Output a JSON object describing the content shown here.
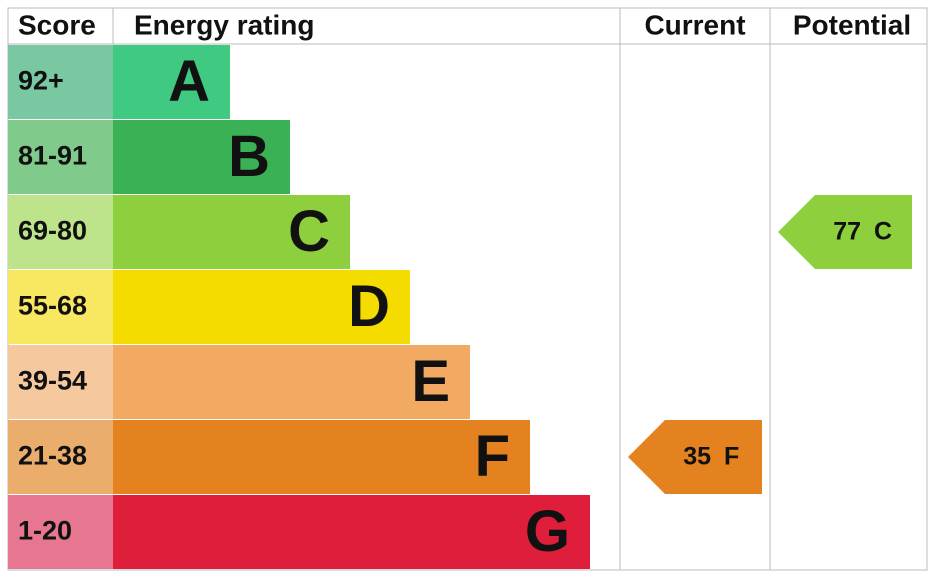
{
  "header": {
    "score": "Score",
    "rating": "Energy rating",
    "current": "Current",
    "potential": "Potential"
  },
  "bands": [
    {
      "score": "92+",
      "letter": "A",
      "color": "#3fc981",
      "score_color": "#79c8a2"
    },
    {
      "score": "81-91",
      "letter": "B",
      "color": "#3bb156",
      "score_color": "#80cb8b"
    },
    {
      "score": "69-80",
      "letter": "C",
      "color": "#8ecf3e",
      "score_color": "#bde38b"
    },
    {
      "score": "55-68",
      "letter": "D",
      "color": "#f5dc00",
      "score_color": "#f8e760"
    },
    {
      "score": "39-54",
      "letter": "E",
      "color": "#f2aa63",
      "score_color": "#f5c89d"
    },
    {
      "score": "21-38",
      "letter": "F",
      "color": "#e4821f",
      "score_color": "#ebad6c"
    },
    {
      "score": "1-20",
      "letter": "G",
      "color": "#df1e3c",
      "score_color": "#e77690"
    }
  ],
  "current": {
    "value": 35,
    "rating": "F"
  },
  "potential": {
    "value": 77,
    "rating": "C"
  }
}
